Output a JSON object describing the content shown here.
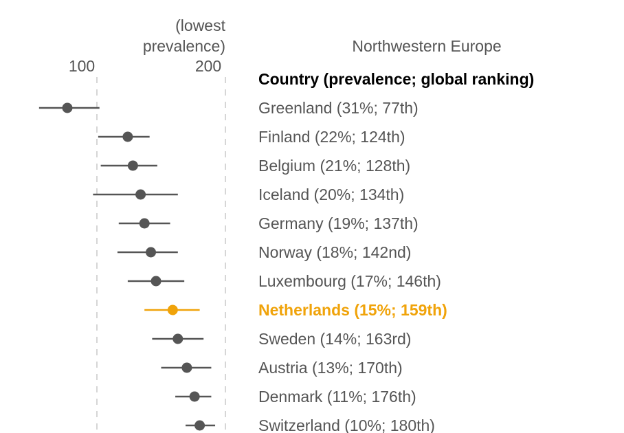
{
  "chart_data": {
    "type": "scatter",
    "subtype": "dot-with-interval",
    "title": "Northwestern Europe",
    "axis_note": [
      "(lowest",
      "prevalence)"
    ],
    "column_header": "Country (prevalence; global ranking)",
    "x_ticks": [
      100,
      200
    ],
    "xlim": [
      60,
      210
    ],
    "grid": "vertical dashed at ticks",
    "colors": {
      "default": "#555555",
      "highlight": "#f0a30a"
    },
    "rows": [
      {
        "label": "Greenland (31%; 77th)",
        "x": 77,
        "low": 55,
        "high": 102,
        "highlight": false
      },
      {
        "label": "Finland (22%; 124th)",
        "x": 124,
        "low": 101,
        "high": 141,
        "highlight": false
      },
      {
        "label": "Belgium (21%; 128th)",
        "x": 128,
        "low": 103,
        "high": 147,
        "highlight": false
      },
      {
        "label": "Iceland (20%; 134th)",
        "x": 134,
        "low": 97,
        "high": 163,
        "highlight": false
      },
      {
        "label": "Germany (19%; 137th)",
        "x": 137,
        "low": 117,
        "high": 157,
        "highlight": false
      },
      {
        "label": "Norway (18%; 142nd)",
        "x": 142,
        "low": 116,
        "high": 163,
        "highlight": false
      },
      {
        "label": "Luxembourg (17%; 146th)",
        "x": 146,
        "low": 124,
        "high": 168,
        "highlight": false
      },
      {
        "label": "Netherlands (15%; 159th)",
        "x": 159,
        "low": 137,
        "high": 180,
        "highlight": true
      },
      {
        "label": "Sweden (14%; 163rd)",
        "x": 163,
        "low": 143,
        "high": 183,
        "highlight": false
      },
      {
        "label": "Austria (13%; 170th)",
        "x": 170,
        "low": 150,
        "high": 189,
        "highlight": false
      },
      {
        "label": "Denmark (11%; 176th)",
        "x": 176,
        "low": 161,
        "high": 189,
        "highlight": false
      },
      {
        "label": "Switzerland (10%; 180th)",
        "x": 180,
        "low": 169,
        "high": 192,
        "highlight": false
      }
    ]
  }
}
